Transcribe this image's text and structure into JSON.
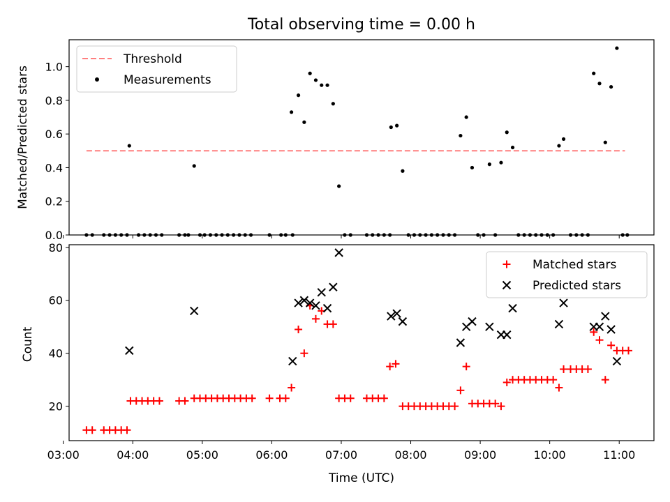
{
  "chart_data": [
    {
      "type": "scatter",
      "title": "Total observing time = 0.00 h",
      "xlabel": "",
      "ylabel": "Matched/Predicted stars",
      "xlim": [
        "03:05",
        "11:30"
      ],
      "ylim": [
        0,
        1.16
      ],
      "yticks": [
        "0.0",
        "0.2",
        "0.4",
        "0.6",
        "0.8",
        "1.0"
      ],
      "legend_position": "upper-left",
      "threshold": {
        "name": "Threshold",
        "value": 0.5,
        "x_start": "03:20",
        "x_end": "11:05",
        "color": "#ff7f7f",
        "style": "dashed"
      },
      "series": [
        {
          "name": "Measurements",
          "color": "#000000",
          "marker": "dot",
          "points": [
            [
              "03:20",
              0
            ],
            [
              "03:25",
              0
            ],
            [
              "03:35",
              0
            ],
            [
              "03:40",
              0
            ],
            [
              "03:45",
              0
            ],
            [
              "03:50",
              0
            ],
            [
              "03:55",
              0
            ],
            [
              "03:57",
              0.53
            ],
            [
              "04:05",
              0
            ],
            [
              "04:10",
              0
            ],
            [
              "04:15",
              0
            ],
            [
              "04:20",
              0
            ],
            [
              "04:25",
              0
            ],
            [
              "04:40",
              0
            ],
            [
              "04:45",
              0
            ],
            [
              "04:48",
              0
            ],
            [
              "04:53",
              0.41
            ],
            [
              "04:58",
              0
            ],
            [
              "05:02",
              0
            ],
            [
              "05:07",
              0
            ],
            [
              "05:12",
              0
            ],
            [
              "05:17",
              0
            ],
            [
              "05:22",
              0
            ],
            [
              "05:27",
              0
            ],
            [
              "05:32",
              0
            ],
            [
              "05:37",
              0
            ],
            [
              "05:42",
              0
            ],
            [
              "05:58",
              0
            ],
            [
              "06:08",
              0
            ],
            [
              "06:12",
              0
            ],
            [
              "06:18",
              0
            ],
            [
              "06:17",
              0.73
            ],
            [
              "06:23",
              0.83
            ],
            [
              "06:28",
              0.67
            ],
            [
              "06:33",
              0.96
            ],
            [
              "06:38",
              0.92
            ],
            [
              "06:43",
              0.89
            ],
            [
              "06:48",
              0.89
            ],
            [
              "06:53",
              0.78
            ],
            [
              "06:58",
              0.29
            ],
            [
              "07:03",
              0
            ],
            [
              "07:08",
              0
            ],
            [
              "07:22",
              0
            ],
            [
              "07:27",
              0
            ],
            [
              "07:32",
              0
            ],
            [
              "07:37",
              0
            ],
            [
              "07:42",
              0
            ],
            [
              "07:43",
              0.64
            ],
            [
              "07:48",
              0.65
            ],
            [
              "07:53",
              0.38
            ],
            [
              "07:58",
              0
            ],
            [
              "08:03",
              0
            ],
            [
              "08:08",
              0
            ],
            [
              "08:13",
              0
            ],
            [
              "08:18",
              0
            ],
            [
              "08:23",
              0
            ],
            [
              "08:28",
              0
            ],
            [
              "08:33",
              0
            ],
            [
              "08:38",
              0
            ],
            [
              "08:43",
              0.59
            ],
            [
              "08:48",
              0.7
            ],
            [
              "08:53",
              0.4
            ],
            [
              "08:58",
              0
            ],
            [
              "09:03",
              0
            ],
            [
              "09:08",
              0.42
            ],
            [
              "09:13",
              0
            ],
            [
              "09:18",
              0.43
            ],
            [
              "09:23",
              0.61
            ],
            [
              "09:28",
              0.52
            ],
            [
              "09:33",
              0
            ],
            [
              "09:38",
              0
            ],
            [
              "09:43",
              0
            ],
            [
              "09:48",
              0
            ],
            [
              "09:53",
              0
            ],
            [
              "09:58",
              0
            ],
            [
              "10:03",
              0
            ],
            [
              "10:08",
              0.53
            ],
            [
              "10:12",
              0.57
            ],
            [
              "10:18",
              0
            ],
            [
              "10:23",
              0
            ],
            [
              "10:28",
              0
            ],
            [
              "10:33",
              0
            ],
            [
              "10:38",
              0.96
            ],
            [
              "10:43",
              0.9
            ],
            [
              "10:48",
              0.55
            ],
            [
              "10:53",
              0.88
            ],
            [
              "10:58",
              1.11
            ],
            [
              "11:03",
              0
            ],
            [
              "11:07",
              0
            ]
          ]
        }
      ]
    },
    {
      "type": "scatter",
      "title": "",
      "xlabel": "Time (UTC)",
      "ylabel": "Count",
      "xlim": [
        "03:05",
        "11:30"
      ],
      "ylim": [
        7,
        81
      ],
      "xticks": [
        "03:00",
        "04:00",
        "05:00",
        "06:00",
        "07:00",
        "08:00",
        "09:00",
        "10:00",
        "11:00"
      ],
      "yticks": [
        "20",
        "40",
        "60",
        "80"
      ],
      "legend_position": "upper-right",
      "series": [
        {
          "name": "Matched stars",
          "color": "#ff0000",
          "marker": "plus",
          "points": [
            [
              "03:20",
              11
            ],
            [
              "03:25",
              11
            ],
            [
              "03:35",
              11
            ],
            [
              "03:40",
              11
            ],
            [
              "03:45",
              11
            ],
            [
              "03:50",
              11
            ],
            [
              "03:55",
              11
            ],
            [
              "03:58",
              22
            ],
            [
              "04:03",
              22
            ],
            [
              "04:08",
              22
            ],
            [
              "04:13",
              22
            ],
            [
              "04:18",
              22
            ],
            [
              "04:23",
              22
            ],
            [
              "04:40",
              22
            ],
            [
              "04:45",
              22
            ],
            [
              "04:53",
              23
            ],
            [
              "04:58",
              23
            ],
            [
              "05:03",
              23
            ],
            [
              "05:08",
              23
            ],
            [
              "05:13",
              23
            ],
            [
              "05:18",
              23
            ],
            [
              "05:23",
              23
            ],
            [
              "05:28",
              23
            ],
            [
              "05:33",
              23
            ],
            [
              "05:38",
              23
            ],
            [
              "05:43",
              23
            ],
            [
              "05:58",
              23
            ],
            [
              "06:07",
              23
            ],
            [
              "06:12",
              23
            ],
            [
              "06:17",
              27
            ],
            [
              "06:23",
              49
            ],
            [
              "06:28",
              40
            ],
            [
              "06:33",
              58
            ],
            [
              "06:38",
              53
            ],
            [
              "06:43",
              56
            ],
            [
              "06:48",
              51
            ],
            [
              "06:53",
              51
            ],
            [
              "06:58",
              23
            ],
            [
              "07:03",
              23
            ],
            [
              "07:08",
              23
            ],
            [
              "07:22",
              23
            ],
            [
              "07:27",
              23
            ],
            [
              "07:32",
              23
            ],
            [
              "07:37",
              23
            ],
            [
              "07:42",
              35
            ],
            [
              "07:47",
              36
            ],
            [
              "07:53",
              20
            ],
            [
              "07:58",
              20
            ],
            [
              "08:03",
              20
            ],
            [
              "08:08",
              20
            ],
            [
              "08:13",
              20
            ],
            [
              "08:18",
              20
            ],
            [
              "08:23",
              20
            ],
            [
              "08:28",
              20
            ],
            [
              "08:33",
              20
            ],
            [
              "08:38",
              20
            ],
            [
              "08:43",
              26
            ],
            [
              "08:48",
              35
            ],
            [
              "08:53",
              21
            ],
            [
              "08:58",
              21
            ],
            [
              "09:03",
              21
            ],
            [
              "09:08",
              21
            ],
            [
              "09:13",
              21
            ],
            [
              "09:18",
              20
            ],
            [
              "09:23",
              29
            ],
            [
              "09:28",
              30
            ],
            [
              "09:33",
              30
            ],
            [
              "09:38",
              30
            ],
            [
              "09:43",
              30
            ],
            [
              "09:48",
              30
            ],
            [
              "09:53",
              30
            ],
            [
              "09:58",
              30
            ],
            [
              "10:03",
              30
            ],
            [
              "10:08",
              27
            ],
            [
              "10:12",
              34
            ],
            [
              "10:18",
              34
            ],
            [
              "10:23",
              34
            ],
            [
              "10:28",
              34
            ],
            [
              "10:33",
              34
            ],
            [
              "10:38",
              48
            ],
            [
              "10:43",
              45
            ],
            [
              "10:48",
              30
            ],
            [
              "10:53",
              43
            ],
            [
              "10:58",
              41
            ],
            [
              "11:03",
              41
            ],
            [
              "11:08",
              41
            ]
          ]
        },
        {
          "name": "Predicted stars",
          "color": "#000000",
          "marker": "x",
          "points": [
            [
              "03:57",
              41
            ],
            [
              "04:53",
              56
            ],
            [
              "06:18",
              37
            ],
            [
              "06:23",
              59
            ],
            [
              "06:28",
              60
            ],
            [
              "06:33",
              59
            ],
            [
              "06:38",
              58
            ],
            [
              "06:43",
              63
            ],
            [
              "06:48",
              57
            ],
            [
              "06:53",
              65
            ],
            [
              "06:58",
              78
            ],
            [
              "07:43",
              54
            ],
            [
              "07:48",
              55
            ],
            [
              "07:53",
              52
            ],
            [
              "08:43",
              44
            ],
            [
              "08:48",
              50
            ],
            [
              "08:53",
              52
            ],
            [
              "09:08",
              50
            ],
            [
              "09:18",
              47
            ],
            [
              "09:23",
              47
            ],
            [
              "09:28",
              57
            ],
            [
              "10:08",
              51
            ],
            [
              "10:12",
              59
            ],
            [
              "10:38",
              50
            ],
            [
              "10:43",
              50
            ],
            [
              "10:48",
              54
            ],
            [
              "10:53",
              49
            ],
            [
              "10:58",
              37
            ]
          ]
        }
      ]
    }
  ]
}
